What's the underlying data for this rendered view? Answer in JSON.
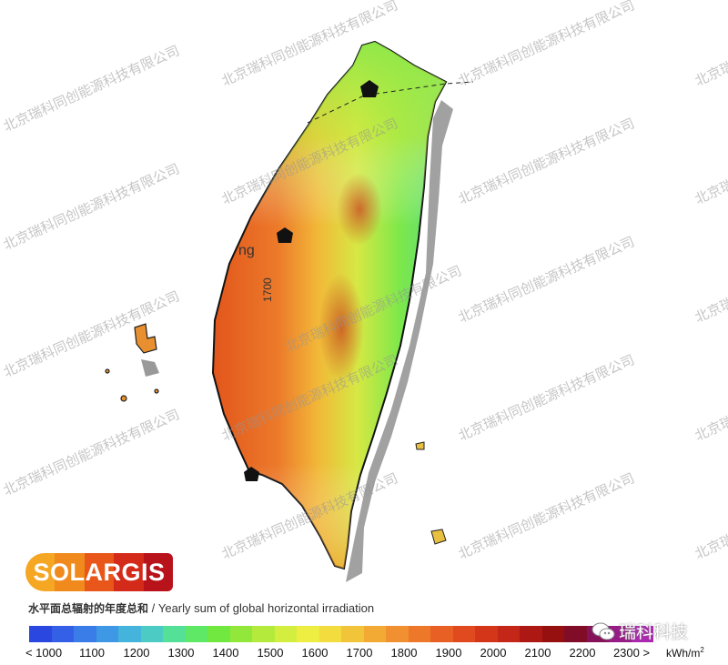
{
  "brand": {
    "logo_text": "SOLARGIS",
    "logo_colors": [
      "#f5a623",
      "#f08a1c",
      "#e8561a",
      "#d42a1a",
      "#b8121a"
    ]
  },
  "caption": {
    "chinese": "水平面总辐射的年度总和",
    "separator": " / ",
    "english": "Yearly sum of global horizontal irradiation"
  },
  "map_labels": {
    "contour_label": "1700",
    "place_fragment": "ng"
  },
  "legend": {
    "ticks": [
      "< 1000",
      "1100",
      "1200",
      "1300",
      "1400",
      "1500",
      "1600",
      "1700",
      "1800",
      "1900",
      "2000",
      "2100",
      "2200",
      "2300 >"
    ],
    "unit": "kWh/m",
    "unit_sup": "2",
    "colors": [
      "#2a47e0",
      "#3360e6",
      "#3a7ce8",
      "#3f98e6",
      "#44b4dc",
      "#4ccbc4",
      "#55e098",
      "#5ee866",
      "#70e840",
      "#92e83a",
      "#b4ea3c",
      "#d4ee40",
      "#eeee42",
      "#f2dc3e",
      "#f2c43a",
      "#f2aa34",
      "#f09030",
      "#ee782a",
      "#e86024",
      "#e04a1e",
      "#d4361a",
      "#c42618",
      "#ae1814",
      "#961010",
      "#800c28",
      "#86125a",
      "#981c86",
      "#ac28b0",
      "#bc38d4",
      "#c848ea"
    ]
  },
  "watermark": {
    "text": "北京瑞科同创能源科技有限公司"
  },
  "wechat": {
    "label": "瑞科科技",
    "icon": "wechat-icon"
  }
}
